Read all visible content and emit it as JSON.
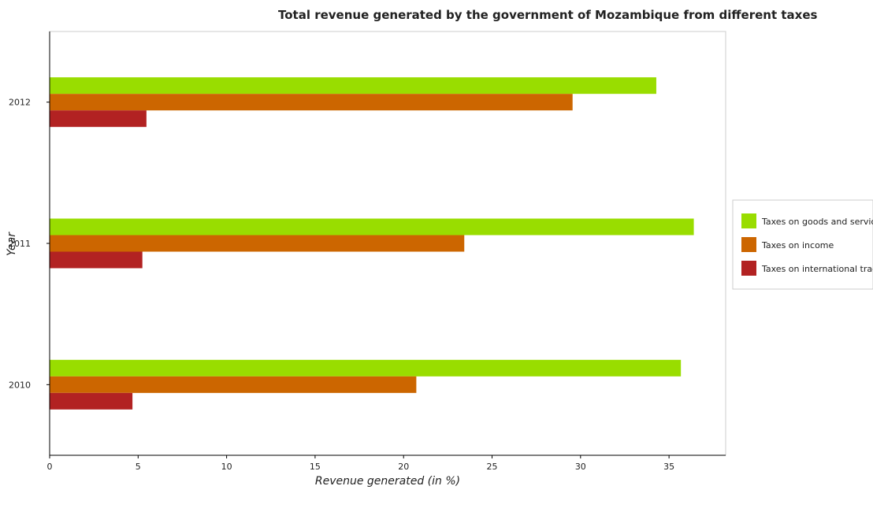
{
  "chart_data": {
    "type": "bar",
    "orientation": "horizontal",
    "title": "Total revenue generated by the government of Mozambique from different taxes",
    "xlabel": "Revenue generated (in %)",
    "ylabel": "Year",
    "xlim": [
      0,
      38.2
    ],
    "xticks": [
      "0",
      "5",
      "10",
      "15",
      "20",
      "25",
      "30",
      "35"
    ],
    "categories": [
      "2010",
      "2011",
      "2012"
    ],
    "series": [
      {
        "name": "Taxes on goods and services",
        "color": "#99dd00",
        "values": [
          35.67,
          36.4,
          34.28
        ]
      },
      {
        "name": "Taxes on income",
        "color": "#cc6600",
        "values": [
          20.72,
          23.43,
          29.55
        ]
      },
      {
        "name": "Taxes on international trade",
        "color": "#b22222",
        "values": [
          4.68,
          5.24,
          5.47
        ]
      }
    ],
    "grid": false,
    "legend_position": "right"
  }
}
